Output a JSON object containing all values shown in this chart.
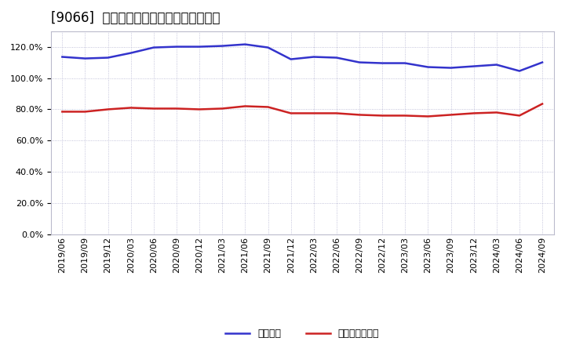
{
  "title": "[9066]  固定比率、固定長期適合率の推移",
  "x_labels": [
    "2019/06",
    "2019/09",
    "2019/12",
    "2020/03",
    "2020/06",
    "2020/09",
    "2020/12",
    "2021/03",
    "2021/06",
    "2021/09",
    "2021/12",
    "2022/03",
    "2022/06",
    "2022/09",
    "2022/12",
    "2023/03",
    "2023/06",
    "2023/09",
    "2023/12",
    "2024/03",
    "2024/06",
    "2024/09"
  ],
  "fixed_ratio": [
    113.5,
    112.5,
    113.0,
    116.0,
    119.5,
    120.0,
    120.0,
    120.5,
    121.5,
    119.5,
    112.0,
    113.5,
    113.0,
    110.0,
    109.5,
    109.5,
    107.0,
    106.5,
    107.5,
    108.5,
    104.5,
    110.0
  ],
  "fixed_long_ratio": [
    78.5,
    78.5,
    80.0,
    81.0,
    80.5,
    80.5,
    80.0,
    80.5,
    82.0,
    81.5,
    77.5,
    77.5,
    77.5,
    76.5,
    76.0,
    76.0,
    75.5,
    76.5,
    77.5,
    78.0,
    76.0,
    83.5
  ],
  "fixed_ratio_color": "#3333cc",
  "fixed_long_ratio_color": "#cc2222",
  "background_color": "#ffffff",
  "plot_bg_color": "#ffffff",
  "grid_color": "#aaaacc",
  "ylim_max": 130,
  "yticks": [
    0,
    20,
    40,
    60,
    80,
    100,
    120
  ],
  "legend_fixed": "固定比率",
  "legend_fixed_long": "固定長期適合率",
  "title_fontsize": 12,
  "axis_fontsize": 8,
  "legend_fontsize": 9
}
